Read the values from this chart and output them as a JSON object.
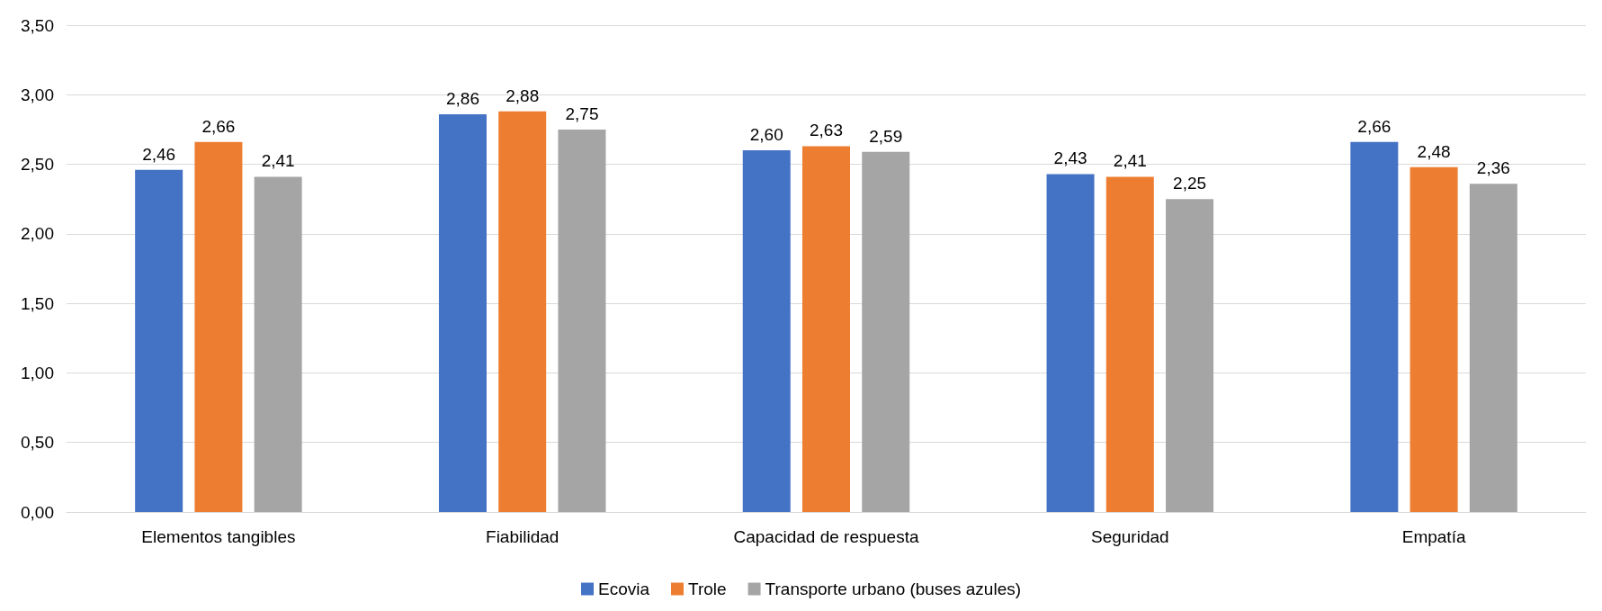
{
  "chart_data": {
    "type": "bar",
    "categories": [
      "Elementos tangibles",
      "Fiabilidad",
      "Capacidad de respuesta",
      "Seguridad",
      "Empatía"
    ],
    "series": [
      {
        "name": "Ecovia",
        "color": "#4472c4",
        "values": [
          2.46,
          2.86,
          2.6,
          2.43,
          2.66
        ],
        "value_labels": [
          "2,46",
          "2,86",
          "2,60",
          "2,43",
          "2,66"
        ]
      },
      {
        "name": "Trole",
        "color": "#ed7d31",
        "values": [
          2.66,
          2.88,
          2.63,
          2.41,
          2.48
        ],
        "value_labels": [
          "2,66",
          "2,88",
          "2,63",
          "2,41",
          "2,48"
        ]
      },
      {
        "name": "Transporte urbano (buses azules)",
        "color": "#a5a5a5",
        "values": [
          2.41,
          2.75,
          2.59,
          2.25,
          2.36
        ],
        "value_labels": [
          "2,41",
          "2,75",
          "2,59",
          "2,25",
          "2,36"
        ]
      }
    ],
    "ylim": [
      0,
      3.5
    ],
    "yticks": [
      {
        "value": 0,
        "label": "0,00"
      },
      {
        "value": 0.5,
        "label": "0,50"
      },
      {
        "value": 1,
        "label": "1,00"
      },
      {
        "value": 1.5,
        "label": "1,50"
      },
      {
        "value": 2,
        "label": "2,00"
      },
      {
        "value": 2.5,
        "label": "2,50"
      },
      {
        "value": 3,
        "label": "3,00"
      },
      {
        "value": 3.5,
        "label": "3,50"
      }
    ],
    "grid": "y",
    "legend": "bottom"
  }
}
